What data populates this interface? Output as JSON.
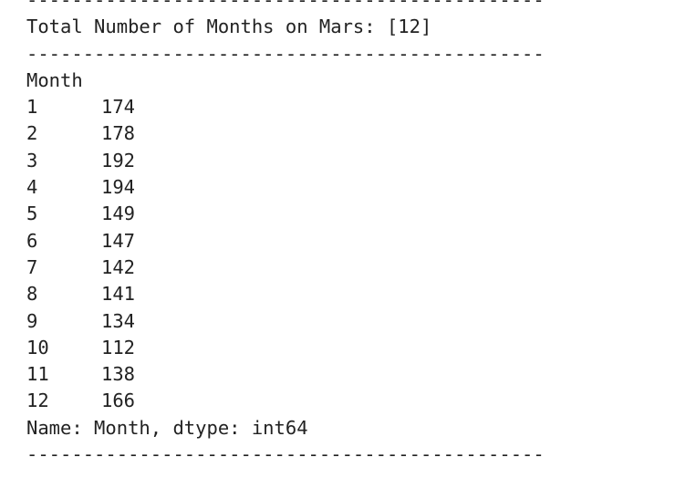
{
  "separator": "----------------------------------------------",
  "header": {
    "total_line": "Total Number of Months on Mars: [12]"
  },
  "series": {
    "index_name": "Month",
    "rows": [
      {
        "index": "1",
        "value": "174"
      },
      {
        "index": "2",
        "value": "178"
      },
      {
        "index": "3",
        "value": "192"
      },
      {
        "index": "4",
        "value": "194"
      },
      {
        "index": "5",
        "value": "149"
      },
      {
        "index": "6",
        "value": "147"
      },
      {
        "index": "7",
        "value": "142"
      },
      {
        "index": "8",
        "value": "141"
      },
      {
        "index": "9",
        "value": "134"
      },
      {
        "index": "10",
        "value": "112"
      },
      {
        "index": "11",
        "value": "138"
      },
      {
        "index": "12",
        "value": "166"
      }
    ],
    "footer": "Name: Month, dtype: int64"
  }
}
